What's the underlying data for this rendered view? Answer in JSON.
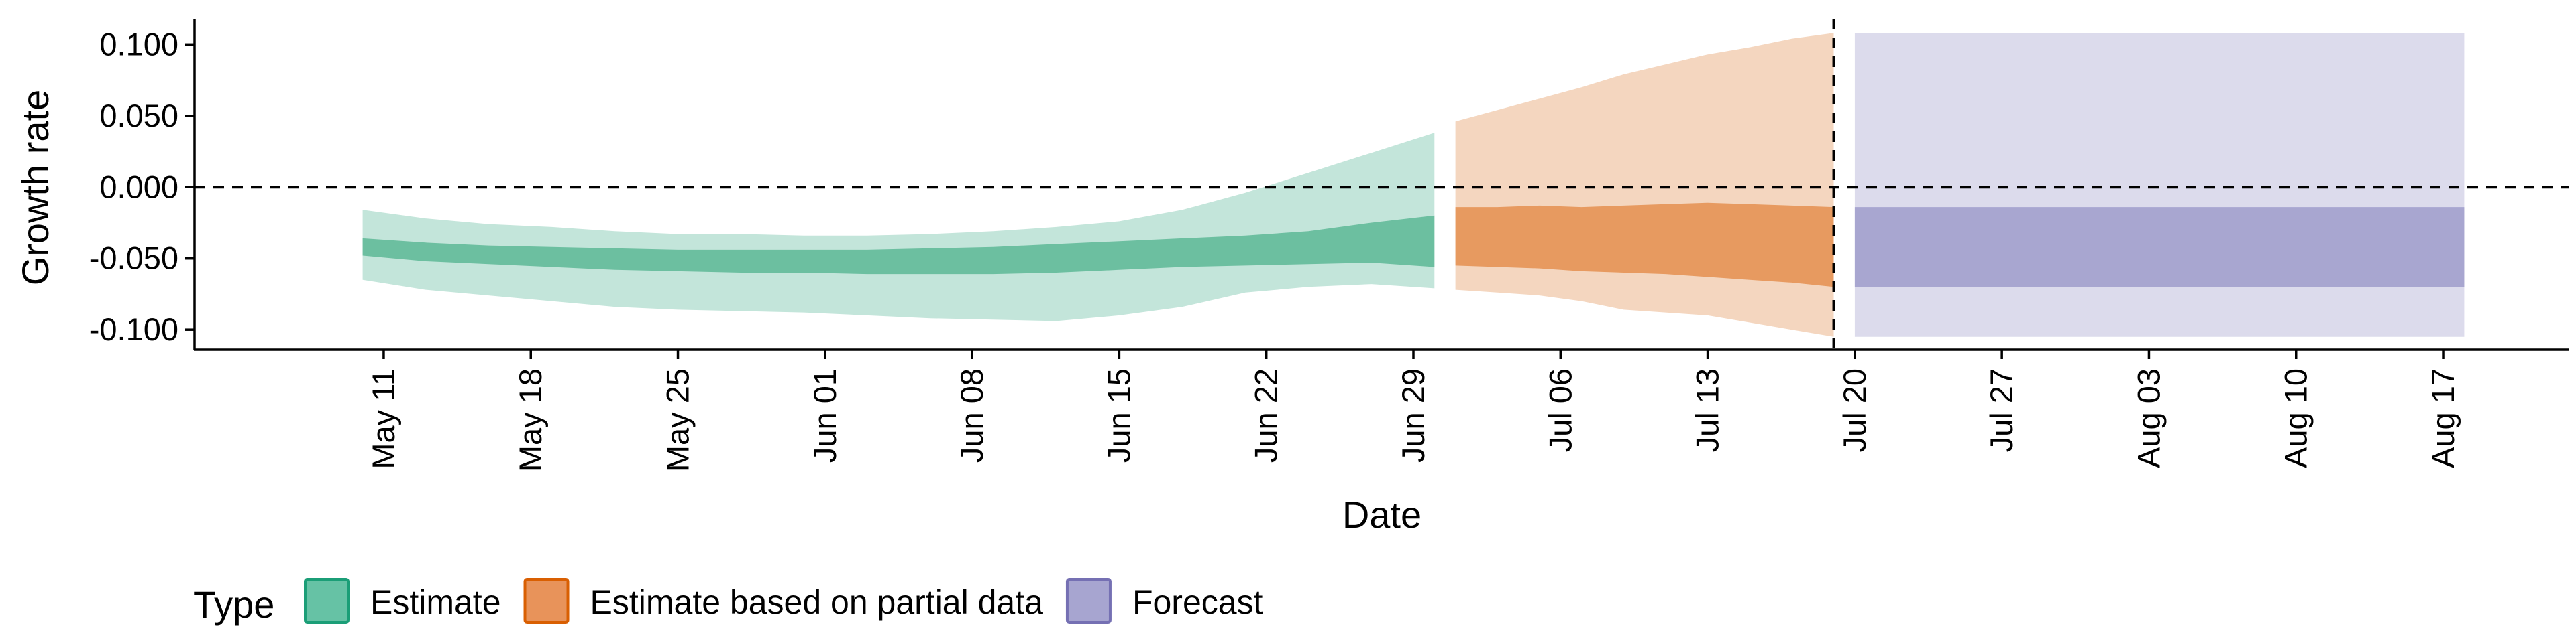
{
  "chart_data": {
    "type": "area",
    "xlabel": "Date",
    "ylabel": "Growth rate",
    "x_ticks": [
      "May 11",
      "May 18",
      "May 25",
      "Jun 01",
      "Jun 08",
      "Jun 15",
      "Jun 22",
      "Jun 29",
      "Jul 06",
      "Jul 13",
      "Jul 20",
      "Jul 27",
      "Aug 03",
      "Aug 10",
      "Aug 17"
    ],
    "x_tick_dates": [
      "2020-05-11",
      "2020-05-18",
      "2020-05-25",
      "2020-06-01",
      "2020-06-08",
      "2020-06-15",
      "2020-06-22",
      "2020-06-29",
      "2020-07-06",
      "2020-07-13",
      "2020-07-20",
      "2020-07-27",
      "2020-08-03",
      "2020-08-10",
      "2020-08-17"
    ],
    "y_ticks": [
      "0.100",
      "0.050",
      "0.000",
      "-0.050",
      "-0.100"
    ],
    "y_tick_values": [
      0.1,
      0.05,
      0.0,
      -0.05,
      -0.1
    ],
    "xlim": [
      "2020-05-02",
      "2020-08-23"
    ],
    "ylim": [
      -0.114,
      0.118
    ],
    "grid": false,
    "legend": {
      "title": "Type",
      "position": "bottom-left",
      "entries": [
        {
          "label": "Estimate",
          "fill": "#66c2a5",
          "border": "#1b9e77"
        },
        {
          "label": "Estimate based on partial data",
          "fill": "#e8935a",
          "border": "#d95f02"
        },
        {
          "label": "Forecast",
          "fill": "#a7a5d0",
          "border": "#7570b3"
        }
      ]
    },
    "reference_lines": [
      {
        "orientation": "horizontal",
        "y": 0.0,
        "style": "dashed"
      },
      {
        "orientation": "vertical",
        "x": "2020-07-19",
        "style": "dashed"
      }
    ],
    "colors": {
      "estimate_inner": "#6cbfa0",
      "estimate_outer": "#c3e5da",
      "partial_inner": "#e79a60",
      "partial_outer": "#f4d6bf",
      "forecast_inner": "#a8a6d0",
      "forecast_outer": "#dcdbec"
    },
    "series": [
      {
        "name": "Estimate",
        "x": [
          "2020-05-10",
          "2020-05-13",
          "2020-05-16",
          "2020-05-19",
          "2020-05-22",
          "2020-05-25",
          "2020-05-28",
          "2020-05-31",
          "2020-06-03",
          "2020-06-06",
          "2020-06-09",
          "2020-06-12",
          "2020-06-15",
          "2020-06-18",
          "2020-06-21",
          "2020-06-24",
          "2020-06-27",
          "2020-06-30"
        ],
        "outer_lower": [
          -0.065,
          -0.072,
          -0.076,
          -0.08,
          -0.084,
          -0.086,
          -0.087,
          -0.088,
          -0.09,
          -0.092,
          -0.093,
          -0.094,
          -0.09,
          -0.084,
          -0.074,
          -0.07,
          -0.068,
          -0.071
        ],
        "outer_upper": [
          -0.016,
          -0.022,
          -0.026,
          -0.028,
          -0.031,
          -0.033,
          -0.033,
          -0.034,
          -0.034,
          -0.033,
          -0.031,
          -0.028,
          -0.024,
          -0.016,
          -0.004,
          0.01,
          0.024,
          0.038
        ],
        "inner_lower": [
          -0.048,
          -0.052,
          -0.054,
          -0.056,
          -0.058,
          -0.059,
          -0.06,
          -0.06,
          -0.061,
          -0.061,
          -0.061,
          -0.06,
          -0.058,
          -0.056,
          -0.055,
          -0.054,
          -0.053,
          -0.056
        ],
        "inner_upper": [
          -0.036,
          -0.039,
          -0.041,
          -0.042,
          -0.043,
          -0.044,
          -0.044,
          -0.044,
          -0.044,
          -0.043,
          -0.042,
          -0.04,
          -0.038,
          -0.036,
          -0.034,
          -0.031,
          -0.025,
          -0.02
        ]
      },
      {
        "name": "Estimate based on partial data",
        "x": [
          "2020-07-01",
          "2020-07-03",
          "2020-07-05",
          "2020-07-07",
          "2020-07-09",
          "2020-07-11",
          "2020-07-13",
          "2020-07-15",
          "2020-07-17",
          "2020-07-19"
        ],
        "outer_lower": [
          -0.072,
          -0.074,
          -0.076,
          -0.08,
          -0.086,
          -0.088,
          -0.09,
          -0.095,
          -0.1,
          -0.105
        ],
        "outer_upper": [
          0.046,
          0.054,
          0.062,
          0.07,
          0.079,
          0.086,
          0.093,
          0.098,
          0.104,
          0.108
        ],
        "inner_lower": [
          -0.055,
          -0.056,
          -0.057,
          -0.059,
          -0.06,
          -0.061,
          -0.063,
          -0.065,
          -0.067,
          -0.07
        ],
        "inner_upper": [
          -0.014,
          -0.014,
          -0.013,
          -0.014,
          -0.013,
          -0.012,
          -0.011,
          -0.012,
          -0.013,
          -0.014
        ]
      },
      {
        "name": "Forecast",
        "x": [
          "2020-07-20",
          "2020-08-18"
        ],
        "outer_lower": [
          -0.105,
          -0.105
        ],
        "outer_upper": [
          0.108,
          0.108
        ],
        "inner_lower": [
          -0.07,
          -0.07
        ],
        "inner_upper": [
          -0.014,
          -0.014
        ]
      }
    ]
  }
}
